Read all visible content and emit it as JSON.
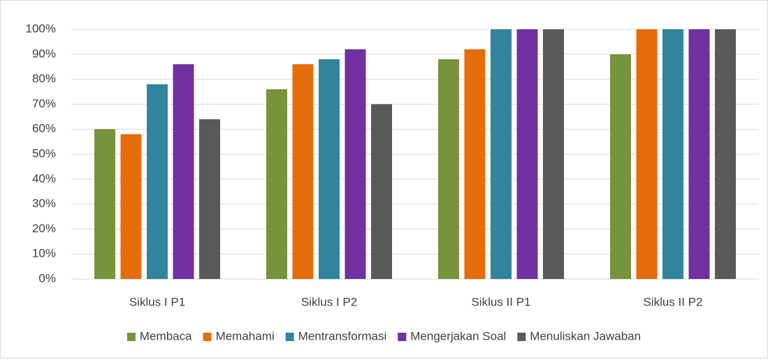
{
  "chart_data": {
    "type": "bar",
    "categories": [
      "Siklus I P1",
      "Siklus I P2",
      "Siklus II P1",
      "Siklus II P2"
    ],
    "series": [
      {
        "name": "Membaca",
        "color": "#77933c",
        "values": [
          60,
          76,
          88,
          90
        ]
      },
      {
        "name": "Memahami",
        "color": "#e46c0a",
        "values": [
          58,
          86,
          92,
          100
        ]
      },
      {
        "name": "Mentransformasi",
        "color": "#31849b",
        "values": [
          78,
          88,
          100,
          100
        ]
      },
      {
        "name": "Mengerjakan Soal",
        "color": "#7030a0",
        "values": [
          86,
          92,
          100,
          100
        ]
      },
      {
        "name": "Menuliskan Jawaban",
        "color": "#595959",
        "values": [
          64,
          70,
          100,
          100
        ]
      }
    ],
    "ylim": [
      0,
      100
    ],
    "yticks": [
      {
        "value": 0,
        "label": "0%"
      },
      {
        "value": 10,
        "label": "10%"
      },
      {
        "value": 20,
        "label": "20%"
      },
      {
        "value": 30,
        "label": "30%"
      },
      {
        "value": 40,
        "label": "40%"
      },
      {
        "value": 50,
        "label": "50%"
      },
      {
        "value": 60,
        "label": "60%"
      },
      {
        "value": 70,
        "label": "70%"
      },
      {
        "value": 80,
        "label": "80%"
      },
      {
        "value": 90,
        "label": "90%"
      },
      {
        "value": 100,
        "label": "100%"
      }
    ],
    "grid": true,
    "legend": "bottom"
  }
}
